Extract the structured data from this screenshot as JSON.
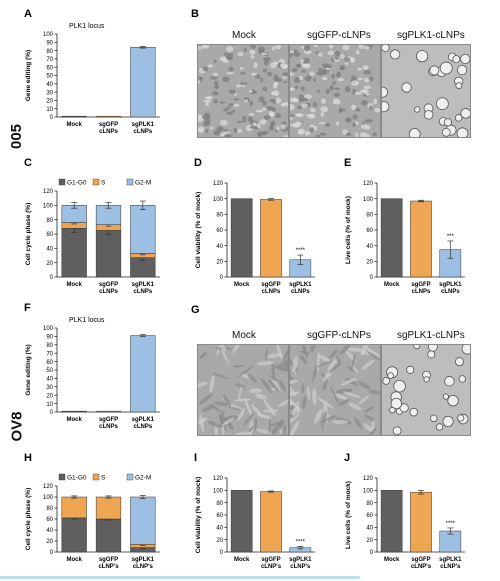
{
  "colors": {
    "mock": "#5f5f5f",
    "sgGFP": "#eea653",
    "sgPLK1": "#9cbfe3",
    "g1": "#5f5f5f",
    "s": "#eea653",
    "g2m": "#9cbfe3",
    "rule": "#b9e3ef"
  },
  "rows": [
    {
      "label": "005"
    },
    {
      "label": "OV8"
    }
  ],
  "micrographs": {
    "B": {
      "letter": "B",
      "labels": [
        "Mock",
        "sgGFP-cLNPs",
        "sgPLK1-cLNPs"
      ]
    },
    "G": {
      "letter": "G",
      "labels": [
        "Mock",
        "sgGFP-cLNPs",
        "sgPLK1-cLNPs"
      ]
    }
  },
  "chart_data": [
    {
      "id": "A",
      "letter": "A",
      "type": "bar",
      "title": "PLK1 locus",
      "ylabel": "Gene editing (%)",
      "ylim": [
        0,
        100
      ],
      "yticks": [
        "0",
        "10",
        "20",
        "30",
        "40",
        "50",
        "60",
        "70",
        "80",
        "90",
        "100"
      ],
      "categories": [
        [
          "Mock"
        ],
        [
          "sgGFP",
          "cLNPs"
        ],
        [
          "sgPLK1",
          "cLNPs"
        ]
      ],
      "values": [
        1,
        1,
        84
      ],
      "errors": [
        0,
        0,
        1
      ],
      "sig": [
        "",
        "",
        ""
      ]
    },
    {
      "id": "C",
      "letter": "C",
      "type": "bar",
      "stacked": true,
      "ylabel": "Cell cycle phase (%)",
      "ylim": [
        0,
        120
      ],
      "yticks": [
        "0",
        "20",
        "40",
        "60",
        "80",
        "100",
        "120"
      ],
      "legend": [
        {
          "label": "G1-G0"
        },
        {
          "label": "S"
        },
        {
          "label": "G2-M"
        }
      ],
      "categories": [
        [
          "Mock"
        ],
        [
          "sgGFP",
          "cLNPs"
        ],
        [
          "sgPLK1",
          "cLNPs"
        ]
      ],
      "series": [
        {
          "values": [
            68,
            65,
            27
          ],
          "errors": [
            6,
            6,
            4
          ]
        },
        {
          "values": [
            8,
            8,
            6
          ],
          "errors": [
            2,
            2,
            2
          ]
        },
        {
          "values": [
            24,
            27,
            67
          ],
          "errors": [
            4,
            4,
            6
          ]
        }
      ]
    },
    {
      "id": "D",
      "letter": "D",
      "type": "bar",
      "ylabel": "Cell viability (% of mock)",
      "ylim": [
        0,
        120
      ],
      "yticks": [
        "0",
        "20",
        "40",
        "60",
        "80",
        "100",
        "120"
      ],
      "categories": [
        [
          "Mock"
        ],
        [
          "sgGFP",
          "cLNPs"
        ],
        [
          "sgPLK1",
          "cLNPs"
        ]
      ],
      "values": [
        100,
        99,
        22
      ],
      "errors": [
        0,
        1,
        6
      ],
      "sig": [
        "",
        "",
        "****"
      ]
    },
    {
      "id": "E",
      "letter": "E",
      "type": "bar",
      "ylabel": "Live cells (% of mock)",
      "ylim": [
        0,
        120
      ],
      "yticks": [
        "0",
        "20",
        "40",
        "60",
        "80",
        "100",
        "120"
      ],
      "categories": [
        [
          "Mock"
        ],
        [
          "sgGFP",
          "cLNPs"
        ],
        [
          "sgPLK1",
          "cLNPs"
        ]
      ],
      "values": [
        100,
        97,
        35
      ],
      "errors": [
        0,
        1,
        11
      ],
      "sig": [
        "",
        "",
        "***"
      ]
    },
    {
      "id": "F",
      "letter": "F",
      "type": "bar",
      "title": "PLK1 locus",
      "ylabel": "Gene editing (%)",
      "ylim": [
        0,
        100
      ],
      "yticks": [
        "0",
        "10",
        "20",
        "30",
        "40",
        "50",
        "60",
        "70",
        "80",
        "90",
        "100"
      ],
      "categories": [
        [
          "Mock"
        ],
        [
          "sgGFP",
          "cLNPs"
        ],
        [
          "sgPLK1",
          "cLNPs"
        ]
      ],
      "values": [
        1,
        1,
        91
      ],
      "errors": [
        0,
        0,
        1
      ],
      "sig": [
        "",
        "",
        ""
      ]
    },
    {
      "id": "H",
      "letter": "H",
      "type": "bar",
      "stacked": true,
      "ylabel": "Cell cycle phase (%)",
      "ylim": [
        0,
        120
      ],
      "yticks": [
        "0",
        "20",
        "40",
        "60",
        "80",
        "100",
        "120"
      ],
      "legend": [
        {
          "label": "G1-G0"
        },
        {
          "label": "S"
        },
        {
          "label": "G2-M"
        }
      ],
      "categories": [
        [
          "Mock"
        ],
        [
          "sgGFP",
          "cLNP's"
        ],
        [
          "sgPLK1",
          "cLNP's"
        ]
      ],
      "series": [
        {
          "values": [
            62,
            60,
            8
          ],
          "errors": [
            2,
            2,
            2
          ]
        },
        {
          "values": [
            38,
            40,
            6
          ],
          "errors": [
            2,
            2,
            2
          ]
        },
        {
          "values": [
            0,
            0,
            86
          ],
          "errors": [
            0,
            0,
            3
          ]
        }
      ]
    },
    {
      "id": "I",
      "letter": "I",
      "type": "bar",
      "ylabel": "Cell viability (% of mock)",
      "ylim": [
        0,
        120
      ],
      "yticks": [
        "0",
        "20",
        "40",
        "60",
        "80",
        "100",
        "120"
      ],
      "categories": [
        [
          "Mock"
        ],
        [
          "sgGFP",
          "cLNP's"
        ],
        [
          "sgPLK1",
          "cLNP's"
        ]
      ],
      "values": [
        100,
        98,
        7
      ],
      "errors": [
        0,
        1,
        2
      ],
      "sig": [
        "",
        "",
        "****"
      ]
    },
    {
      "id": "J",
      "letter": "J",
      "type": "bar",
      "ylabel": "Live cells (% of mock)",
      "ylim": [
        0,
        120
      ],
      "yticks": [
        "0",
        "20",
        "40",
        "60",
        "80",
        "100",
        "120"
      ],
      "categories": [
        [
          "Mock"
        ],
        [
          "sgGFP",
          "cLNP's"
        ],
        [
          "sgPLK1",
          "cLNP's"
        ]
      ],
      "values": [
        100,
        97,
        34
      ],
      "errors": [
        0,
        3,
        5
      ],
      "sig": [
        "",
        "",
        "****"
      ]
    }
  ]
}
